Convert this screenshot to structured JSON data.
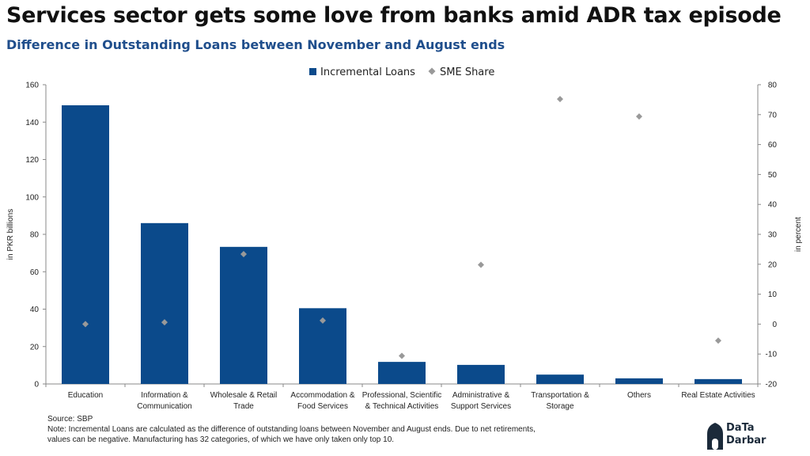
{
  "title": "Services sector gets some love from banks amid ADR tax episode",
  "subtitle": "Difference in Outstanding Loans between November and August ends",
  "chart_data": {
    "type": "bar",
    "categories": [
      [
        "Education"
      ],
      [
        "Information &",
        "Communication"
      ],
      [
        "Wholesale & Retail",
        "Trade"
      ],
      [
        "Accommodation &",
        "Food Services"
      ],
      [
        "Professional, Scientific",
        "& Technical Activities"
      ],
      [
        "Administrative &",
        "Support Services"
      ],
      [
        "Transportation &",
        "Storage"
      ],
      [
        "Others"
      ],
      [
        "Real Estate Activities"
      ]
    ],
    "series": [
      {
        "name": "Incremental Loans",
        "type": "bar",
        "axis": "left",
        "color": "#0b4a8b",
        "values": [
          149,
          86,
          73.3,
          40.5,
          11.8,
          10.2,
          5,
          3,
          2.6
        ]
      },
      {
        "name": "SME Share",
        "type": "scatter",
        "marker": "diamond",
        "axis": "right",
        "color": "#999999",
        "values": [
          0,
          0.6,
          23.4,
          1.2,
          -10.6,
          19.8,
          75.2,
          69.4,
          -5.5
        ]
      }
    ],
    "ylabel": "in PKR billions",
    "y2label": "in percent",
    "ylim": [
      0,
      160
    ],
    "y2lim": [
      -20,
      80
    ],
    "yticks": [
      0,
      20,
      40,
      60,
      80,
      100,
      120,
      140,
      160
    ],
    "y2ticks": [
      -20,
      -10,
      0,
      10,
      20,
      30,
      40,
      50,
      60,
      70,
      80
    ],
    "legend": "top-center",
    "grid": false
  },
  "notes": {
    "source": "Source: SBP",
    "line1": "Note: Incremental Loans are calculated as the difference of outstanding loans between November and August ends. Due to net retirements,",
    "line2": "values can be negative. Manufacturing has 32 categories, of which we have only taken only top 10."
  },
  "logo": {
    "line1": "DaTa",
    "line2": "Darbar"
  }
}
